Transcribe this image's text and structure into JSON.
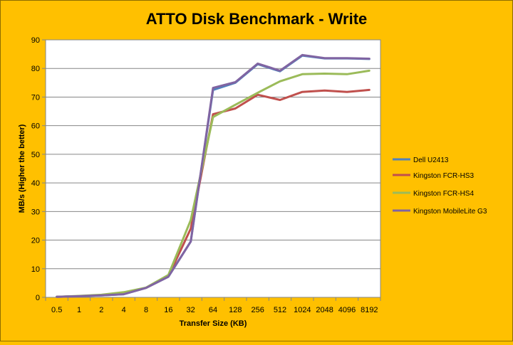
{
  "chart_data": {
    "type": "line",
    "title": "ATTO Disk Benchmark - Write",
    "xlabel": "Transfer Size (KB)",
    "ylabel": "MB/s (Higher the better)",
    "categories": [
      "0.5",
      "1",
      "2",
      "4",
      "8",
      "16",
      "32",
      "64",
      "128",
      "256",
      "512",
      "1024",
      "2048",
      "4096",
      "8192"
    ],
    "ylim": [
      0,
      90
    ],
    "yticks": [
      0,
      10,
      20,
      30,
      40,
      50,
      60,
      70,
      80,
      90
    ],
    "grid": "horizontal",
    "legend_position": "right",
    "series": [
      {
        "name": "Dell U2413",
        "color": "#4f81bd",
        "values": [
          0.2,
          0.4,
          0.7,
          1.1,
          3.3,
          7.2,
          19.5,
          72.5,
          75.0,
          81.5,
          79.0,
          84.5,
          83.5,
          83.5,
          83.3
        ]
      },
      {
        "name": "Kingston FCR-HS3",
        "color": "#c0504d",
        "values": [
          0.2,
          0.4,
          0.8,
          1.3,
          3.3,
          7.3,
          24.0,
          64.0,
          66.0,
          70.8,
          69.0,
          71.8,
          72.3,
          71.8,
          72.5
        ]
      },
      {
        "name": "Kingston FCR-HS4",
        "color": "#9bbb59",
        "values": [
          0.2,
          0.5,
          0.9,
          1.8,
          3.4,
          7.8,
          27.0,
          63.0,
          67.3,
          71.5,
          75.5,
          78.0,
          78.2,
          78.0,
          79.2
        ]
      },
      {
        "name": "Kingston MobileLite G3",
        "color": "#8064a2",
        "values": [
          0.2,
          0.4,
          0.7,
          1.1,
          3.3,
          7.2,
          19.5,
          73.2,
          75.2,
          81.7,
          79.2,
          84.7,
          83.6,
          83.6,
          83.4
        ]
      }
    ]
  }
}
